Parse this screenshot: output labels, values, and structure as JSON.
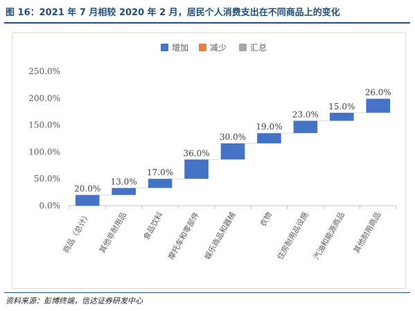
{
  "header": {
    "title": "图 16：2021 年 7 月相较 2020 年 2 月，居民个人消费支出在不同商品上的变化"
  },
  "footer": {
    "source": "资料来源：彭博终端，信达证券研发中心"
  },
  "colors": {
    "increase": "#4472c4",
    "decrease": "#ed7d31",
    "total": "#a5a5a5",
    "title": "#1f4e79",
    "grid": "#d9d9d9"
  },
  "chart_data": {
    "type": "waterfall",
    "legend": [
      {
        "name": "增加",
        "color": "#4472c4"
      },
      {
        "name": "减少",
        "color": "#ed7d31"
      },
      {
        "name": "汇总",
        "color": "#a5a5a5"
      }
    ],
    "legend_position": "top-center",
    "categories": [
      "商品（总计）",
      "其他非耐用品",
      "食品饮料",
      "摩托车和零部件",
      "娱乐商品和器械",
      "衣物",
      "住房耐用品设施",
      "汽油和能源商品",
      "其他耐用商品"
    ],
    "values": [
      20.0,
      13.0,
      17.0,
      36.0,
      30.0,
      19.0,
      23.0,
      15.0,
      26.0
    ],
    "bar_ranges": [
      [
        0,
        20
      ],
      [
        20,
        33
      ],
      [
        33,
        50
      ],
      [
        50,
        86
      ],
      [
        86,
        116
      ],
      [
        116,
        135
      ],
      [
        135,
        158
      ],
      [
        158,
        173
      ],
      [
        173,
        199
      ]
    ],
    "data_labels": [
      "20.0%",
      "13.0%",
      "17.0%",
      "36.0%",
      "30.0%",
      "19.0%",
      "23.0%",
      "15.0%",
      "26.0%"
    ],
    "y_ticks": [
      "0.0%",
      "50.0%",
      "100.0%",
      "150.0%",
      "200.0%",
      "250.0%"
    ],
    "ylim": [
      0,
      250
    ],
    "grid": false
  }
}
